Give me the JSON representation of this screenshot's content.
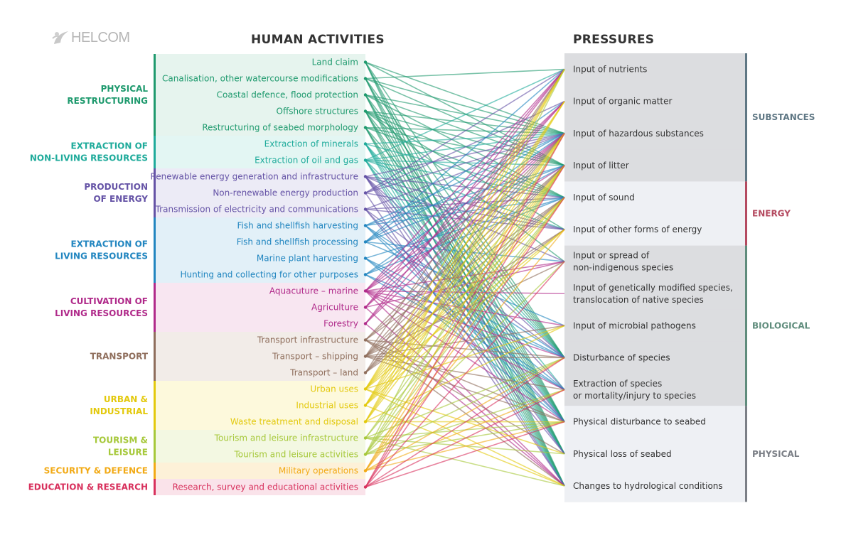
{
  "logo": {
    "text": "HELCOM",
    "icon": "helcom-swan-logo"
  },
  "headers": {
    "left": "HUMAN ACTIVITIES",
    "right": "PRESSURES"
  },
  "groups": [
    {
      "label": [
        "PHYSICAL",
        "RESTRUCTURING"
      ],
      "color": "#1f9a6e",
      "bg": "#e6f4ee",
      "count": 5
    },
    {
      "label": [
        "EXTRACTION OF",
        "NON-LIVING RESOURCES"
      ],
      "color": "#1fab9b",
      "bg": "#e3f6f3",
      "count": 2
    },
    {
      "label": [
        "PRODUCTION",
        "OF ENERGY"
      ],
      "color": "#6553a6",
      "bg": "#ecebf6",
      "count": 3
    },
    {
      "label": [
        "EXTRACTION OF",
        "LIVING RESOURCES"
      ],
      "color": "#2286c0",
      "bg": "#e2f0f8",
      "count": 4
    },
    {
      "label": [
        "CULTIVATION OF",
        "LIVING RESOURCES"
      ],
      "color": "#b02a8a",
      "bg": "#f8e6f1",
      "count": 3
    },
    {
      "label": [
        "TRANSPORT"
      ],
      "color": "#8f6e5c",
      "bg": "#f2ece8",
      "count": 3
    },
    {
      "label": [
        "URBAN &",
        "INDUSTRIAL"
      ],
      "color": "#e3c90d",
      "bg": "#fdf9dc",
      "count": 3
    },
    {
      "label": [
        "TOURISM &",
        "LEISURE"
      ],
      "color": "#a6c83a",
      "bg": "#f3f8e2",
      "count": 2
    },
    {
      "label": [
        "SECURITY & DEFENCE"
      ],
      "color": "#f2aa16",
      "bg": "#fdf1d8",
      "count": 1
    },
    {
      "label": [
        "EDUCATION & RESEARCH"
      ],
      "color": "#d8315d",
      "bg": "#fae3ea",
      "count": 1
    }
  ],
  "activities": [
    {
      "label": "Land claim",
      "group": 0
    },
    {
      "label": "Canalisation, other watercourse modifications",
      "group": 0
    },
    {
      "label": "Coastal defence, flood protection",
      "group": 0
    },
    {
      "label": "Offshore structures",
      "group": 0
    },
    {
      "label": "Restructuring of seabed morphology",
      "group": 0
    },
    {
      "label": "Extraction of minerals",
      "group": 1
    },
    {
      "label": "Extraction of oil and gas",
      "group": 1
    },
    {
      "label": "Renewable energy generation and infrastructure",
      "group": 2
    },
    {
      "label": "Non-renewable energy production",
      "group": 2
    },
    {
      "label": "Transmission of electricity and communications",
      "group": 2
    },
    {
      "label": "Fish and shellfish harvesting",
      "group": 3
    },
    {
      "label": "Fish and shellfish processing",
      "group": 3
    },
    {
      "label": "Marine plant harvesting",
      "group": 3
    },
    {
      "label": "Hunting and collecting for other purposes",
      "group": 3
    },
    {
      "label": "Aquacuture – marine",
      "group": 4
    },
    {
      "label": "Agriculture",
      "group": 4
    },
    {
      "label": "Forestry",
      "group": 4
    },
    {
      "label": "Transport infrastructure",
      "group": 5
    },
    {
      "label": "Transport – shipping",
      "group": 5
    },
    {
      "label": "Transport – land",
      "group": 5
    },
    {
      "label": "Urban uses",
      "group": 6
    },
    {
      "label": "Industrial uses",
      "group": 6
    },
    {
      "label": "Waste treatment and disposal",
      "group": 6
    },
    {
      "label": "Tourism and leisure infrastructure",
      "group": 7
    },
    {
      "label": "Tourism and leisure activities",
      "group": 7
    },
    {
      "label": "Military operations",
      "group": 8
    },
    {
      "label": "Research, survey and educational activities",
      "group": 9
    }
  ],
  "pressure_categories": [
    {
      "label": "SUBSTANCES",
      "color": "#5f7784",
      "start": 0,
      "count": 4
    },
    {
      "label": "ENERGY",
      "color": "#b44a60",
      "start": 4,
      "count": 2
    },
    {
      "label": "BIOLOGICAL",
      "color": "#5f8c7c",
      "start": 6,
      "count": 5
    },
    {
      "label": "PHYSICAL",
      "color": "#7b7f86",
      "start": 11,
      "count": 3
    }
  ],
  "pressures": [
    {
      "label": [
        "Input of nutrients"
      ],
      "band": "dark"
    },
    {
      "label": [
        "Input of organic matter"
      ],
      "band": "dark"
    },
    {
      "label": [
        "Input of hazardous substances"
      ],
      "band": "dark"
    },
    {
      "label": [
        "Input of litter"
      ],
      "band": "dark"
    },
    {
      "label": [
        "Input of sound"
      ],
      "band": "light"
    },
    {
      "label": [
        "Input of other forms of energy"
      ],
      "band": "light"
    },
    {
      "label": [
        "Input or spread of",
        "non-indigenous species"
      ],
      "band": "dark"
    },
    {
      "label": [
        "Input of genetically modified species,",
        "translocation of native species"
      ],
      "band": "dark"
    },
    {
      "label": [
        "Input of microbial pathogens"
      ],
      "band": "dark"
    },
    {
      "label": [
        "Disturbance of species"
      ],
      "band": "dark"
    },
    {
      "label": [
        "Extraction of species",
        "or mortality/injury to species"
      ],
      "band": "dark"
    },
    {
      "label": [
        "Physical disturbance to seabed"
      ],
      "band": "light"
    },
    {
      "label": [
        "Physical loss of seabed"
      ],
      "band": "light"
    },
    {
      "label": [
        "Changes to hydrological conditions"
      ],
      "band": "light"
    }
  ],
  "links": [
    [
      0,
      [
        2,
        3,
        9,
        11,
        12,
        13
      ]
    ],
    [
      1,
      [
        0,
        2,
        3,
        9,
        11,
        12,
        13
      ]
    ],
    [
      2,
      [
        2,
        3,
        4,
        9,
        11,
        12,
        13
      ]
    ],
    [
      3,
      [
        2,
        3,
        4,
        5,
        6,
        9,
        11,
        12,
        13
      ]
    ],
    [
      4,
      [
        2,
        3,
        4,
        9,
        11,
        12,
        13
      ]
    ],
    [
      5,
      [
        2,
        4,
        9,
        10,
        11,
        12,
        13
      ]
    ],
    [
      6,
      [
        0,
        2,
        3,
        4,
        5,
        9,
        11,
        12,
        13
      ]
    ],
    [
      7,
      [
        2,
        4,
        5,
        6,
        9,
        10,
        11,
        12,
        13
      ]
    ],
    [
      8,
      [
        0,
        1,
        2,
        5,
        13
      ]
    ],
    [
      9,
      [
        2,
        4,
        5,
        9,
        11,
        12
      ]
    ],
    [
      10,
      [
        2,
        3,
        4,
        9,
        10,
        11
      ]
    ],
    [
      11,
      [
        0,
        1,
        2,
        3,
        6,
        8
      ]
    ],
    [
      12,
      [
        4,
        9,
        10,
        11
      ]
    ],
    [
      13,
      [
        2,
        3,
        4,
        9,
        10
      ]
    ],
    [
      14,
      [
        0,
        1,
        2,
        3,
        6,
        7,
        8,
        9,
        10,
        11,
        13
      ]
    ],
    [
      15,
      [
        0,
        1,
        2,
        6,
        13
      ]
    ],
    [
      16,
      [
        0,
        1,
        2,
        13
      ]
    ],
    [
      17,
      [
        2,
        3,
        4,
        9,
        11,
        12,
        13
      ]
    ],
    [
      18,
      [
        0,
        2,
        3,
        4,
        5,
        6,
        8,
        9,
        10,
        11
      ]
    ],
    [
      19,
      [
        0,
        2,
        3,
        4,
        5
      ]
    ],
    [
      20,
      [
        0,
        1,
        2,
        3,
        4,
        5,
        8,
        12,
        13
      ]
    ],
    [
      21,
      [
        0,
        1,
        2,
        3,
        4,
        5,
        13
      ]
    ],
    [
      22,
      [
        0,
        1,
        2,
        3,
        8,
        11
      ]
    ],
    [
      23,
      [
        3,
        4,
        9,
        11,
        12,
        13
      ]
    ],
    [
      24,
      [
        0,
        2,
        3,
        4,
        6,
        9,
        10,
        11
      ]
    ],
    [
      25,
      [
        2,
        3,
        4,
        5,
        9,
        10,
        11
      ]
    ],
    [
      26,
      [
        2,
        3,
        4,
        6,
        9,
        10,
        11
      ]
    ]
  ]
}
